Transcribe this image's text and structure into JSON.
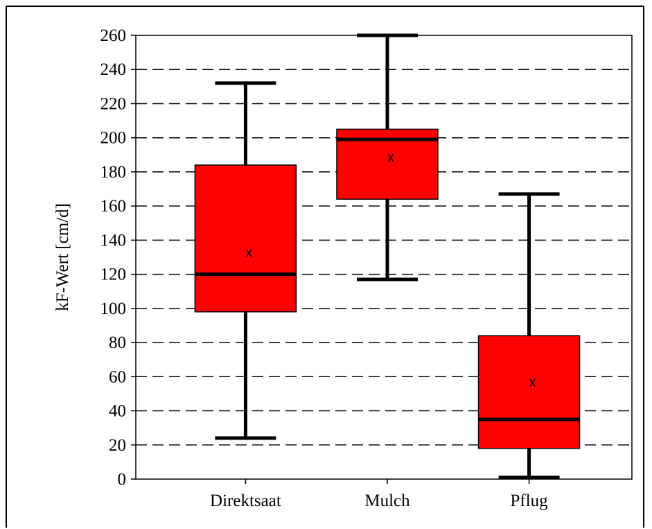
{
  "chart_data": {
    "type": "box",
    "title": "",
    "xlabel": "",
    "ylabel": "kF-Wert [cm/d]",
    "ylim": [
      0,
      260
    ],
    "yticks": [
      0,
      20,
      40,
      60,
      80,
      100,
      120,
      140,
      160,
      180,
      200,
      220,
      240,
      260
    ],
    "grid": "horizontal-dashed",
    "box_color": "#ff0000",
    "mean_marker": "x",
    "categories": [
      "Direktsaat",
      "Mulch",
      "Pflug"
    ],
    "boxes": [
      {
        "category": "Direktsaat",
        "min": 24,
        "q1": 98,
        "median": 120,
        "q3": 184,
        "max": 232,
        "mean": 133
      },
      {
        "category": "Mulch",
        "min": 117,
        "q1": 164,
        "median": 199,
        "q3": 205,
        "max": 260,
        "mean": 189
      },
      {
        "category": "Pflug",
        "min": 1,
        "q1": 18,
        "median": 35,
        "q3": 84,
        "max": 167,
        "mean": 57
      }
    ]
  }
}
